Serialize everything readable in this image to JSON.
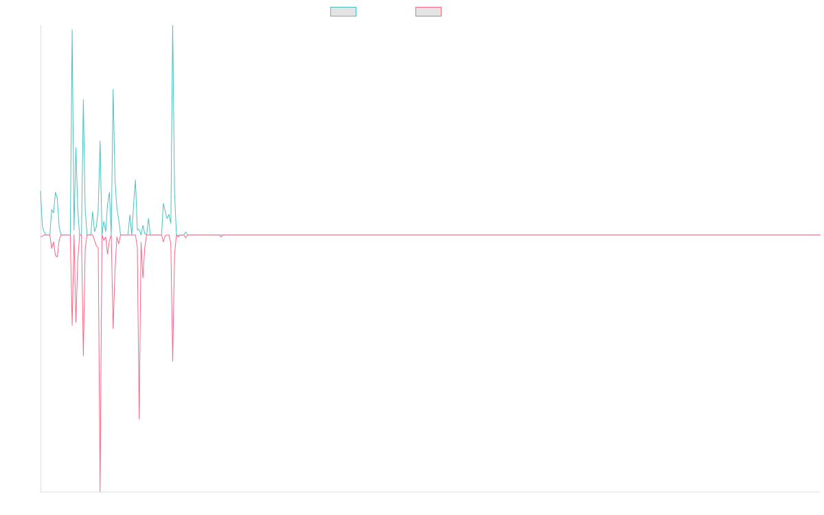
{
  "chart_data": {
    "type": "line",
    "title": "",
    "xlabel": "",
    "ylabel": "",
    "n_points": 420,
    "tail_value": 0,
    "xlim": [
      0,
      419
    ],
    "ylim": [
      -100,
      81.6
    ],
    "grid": false,
    "legend_position": "top-center",
    "series": [
      {
        "name": "",
        "color": "#4bc0c0",
        "values": [
          17.1,
          3.2,
          1.1,
          0,
          0,
          0,
          9.9,
          8.6,
          16.6,
          14.4,
          3.2,
          0,
          0,
          0,
          0,
          0,
          0,
          79.9,
          1.9,
          34.0,
          9.9,
          0,
          0,
          52.7,
          9.9,
          0,
          0,
          0,
          9.1,
          1.3,
          3.2,
          9.9,
          36.6,
          0,
          5.3,
          1.3,
          11.8,
          16.6,
          0,
          56.7,
          21.4,
          10.4,
          5.9,
          0,
          0,
          0,
          0,
          0,
          7.8,
          0,
          11.8,
          21.4,
          1.9,
          2.1,
          0,
          3.7,
          0.5,
          0,
          6.4,
          0,
          0,
          0,
          0,
          0,
          0,
          0,
          12.3,
          9.1,
          6.4,
          8.0,
          4.5,
          81.6,
          16.6,
          0,
          -0.3,
          0,
          0,
          0,
          1.1,
          0,
          0,
          0,
          0,
          0,
          0,
          0,
          0,
          0,
          0,
          0,
          0,
          0,
          0,
          0,
          0,
          0,
          0,
          0,
          0,
          0
        ]
      },
      {
        "name": "",
        "color": "#ff6384",
        "values": [
          -0.8,
          -0.5,
          0,
          0,
          0,
          0,
          -5.3,
          -2.7,
          -8.0,
          -8.6,
          -2.1,
          0,
          0,
          0,
          0,
          0,
          0,
          -35.3,
          0,
          -34.0,
          -10.2,
          0,
          0,
          -47.1,
          -5.3,
          0,
          0,
          0,
          0,
          -2.1,
          -4.3,
          -5.0,
          -100,
          0,
          -2.1,
          -0.8,
          -7.5,
          -2.1,
          0,
          -36.4,
          -14.2,
          -0.8,
          -3.5,
          0,
          0,
          0,
          0,
          0,
          0,
          0,
          0,
          0,
          -4.8,
          -71.7,
          -2.9,
          -16.8,
          -4.8,
          0,
          0,
          0,
          0,
          0,
          0,
          0,
          0,
          0,
          -2.7,
          -0.3,
          0,
          0,
          -3.5,
          -49.2,
          -7.5,
          0,
          -0.8,
          0,
          0,
          0,
          -1.1,
          0,
          0,
          0,
          0,
          0,
          0,
          0,
          0,
          0,
          0,
          0,
          0,
          0,
          0,
          0,
          0,
          0,
          0,
          -0.8,
          0,
          0
        ]
      }
    ]
  }
}
